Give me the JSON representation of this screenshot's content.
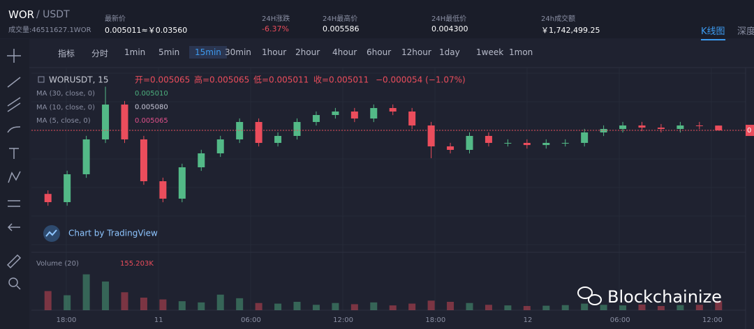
{
  "header": {
    "pair_base": "WOR",
    "pair_quote": "/ USDT",
    "volume": "成交量:46511627.1WOR",
    "stats": [
      {
        "label": "最新价",
        "value": "0.005011≈￥0.03560"
      },
      {
        "label": "24H涨跌",
        "value": "-6.37%"
      },
      {
        "label": "24H最高价",
        "value": "0.005586"
      },
      {
        "label": "24H最低价",
        "value": "0.004300"
      },
      {
        "label": "24h成交额",
        "value": "￥1,742,499.25"
      }
    ],
    "tabs": [
      "K线图",
      "深度"
    ]
  },
  "toolbar": {
    "indicator": "指标",
    "timeshare": "分时",
    "intervals": [
      "1min",
      "5min",
      "15min",
      "30min",
      "1hour",
      "2hour",
      "4hour",
      "6hour",
      "12hour",
      "1day",
      "1week",
      "1mon"
    ],
    "active": 2
  },
  "legend": {
    "symbol": "WORUSDT, 15",
    "open": "开=0.005065",
    "high": "高=0.005065",
    "low": "低=0.005011",
    "close": "收=0.005011",
    "change": "−0.000054 (−1.07%)",
    "ma": [
      {
        "name": "MA (30, close, 0)",
        "value": "0.005010",
        "color": "#4caf7d"
      },
      {
        "name": "MA (10, close, 0)",
        "value": "0.005080",
        "color": "#c8c8d8"
      },
      {
        "name": "MA (5, close, 0)",
        "value": "0.005065",
        "color": "#e0508a"
      }
    ],
    "volume_name": "Volume (20)",
    "volume_value": "155.203K"
  },
  "credit": "Chart by TradingView",
  "watermark": "Blockchainize",
  "price_tag": "0",
  "time_labels": [
    "18:00",
    "11",
    "06:00",
    "12:00",
    "18:00",
    "12",
    "06:00",
    "12:00"
  ],
  "chart": {
    "price_range": [
      0.00374,
      0.00569
    ],
    "volume_range": [
      0,
      700
    ],
    "up_color": "#53b987",
    "down_color": "#eb4d5c",
    "candles": [
      [
        0.0043,
        0.00434,
        0.004168,
        0.004208
      ],
      [
        0.004208,
        0.00456,
        0.004168,
        0.00452
      ],
      [
        0.00452,
        0.00495,
        0.00448,
        0.00491
      ],
      [
        0.00491,
        0.0055,
        0.00487,
        0.0053
      ],
      [
        0.0053,
        0.00534,
        0.00487,
        0.00491
      ],
      [
        0.00491,
        0.00495,
        0.004402,
        0.004442
      ],
      [
        0.004442,
        0.004482,
        0.004207,
        0.004247
      ],
      [
        0.004247,
        0.004638,
        0.004207,
        0.004598
      ],
      [
        0.004598,
        0.004794,
        0.004558,
        0.004754
      ],
      [
        0.004754,
        0.00495,
        0.004714,
        0.00491
      ],
      [
        0.00491,
        0.005145,
        0.00487,
        0.005105
      ],
      [
        0.005105,
        0.005145,
        0.004831,
        0.004871
      ],
      [
        0.004871,
        0.004989,
        0.004831,
        0.004949
      ],
      [
        0.004949,
        0.005145,
        0.004909,
        0.005105
      ],
      [
        0.005105,
        0.005223,
        0.005065,
        0.005183
      ],
      [
        0.005183,
        0.005262,
        0.005143,
        0.005222
      ],
      [
        0.005222,
        0.005262,
        0.005104,
        0.005144
      ],
      [
        0.005144,
        0.005301,
        0.005104,
        0.005261
      ],
      [
        0.005261,
        0.005301,
        0.005182,
        0.005222
      ],
      [
        0.005222,
        0.005262,
        0.005026,
        0.005066
      ],
      [
        0.005066,
        0.005106,
        0.0047,
        0.004832
      ],
      [
        0.004832,
        0.004872,
        0.004753,
        0.004793
      ],
      [
        0.004793,
        0.004989,
        0.004753,
        0.004949
      ],
      [
        0.004949,
        0.004989,
        0.004831,
        0.004871
      ],
      [
        0.004871,
        0.004911,
        0.004831,
        0.004871
      ],
      [
        0.004871,
        0.004911,
        0.004807,
        0.004847
      ],
      [
        0.004847,
        0.004911,
        0.004807,
        0.004871
      ],
      [
        0.004871,
        0.004911,
        0.004831,
        0.004871
      ],
      [
        0.004871,
        0.005028,
        0.004831,
        0.004988
      ],
      [
        0.004988,
        0.005067,
        0.004948,
        0.005027
      ],
      [
        0.005027,
        0.005106,
        0.004987,
        0.005066
      ],
      [
        0.005066,
        0.005106,
        0.005002,
        0.005042
      ],
      [
        0.005042,
        0.005082,
        0.004987,
        0.005027
      ],
      [
        0.005027,
        0.005106,
        0.004987,
        0.005066
      ],
      [
        0.005066,
        0.005106,
        0.005025,
        0.005065
      ],
      [
        0.005065,
        0.005065,
        0.005011,
        0.005011
      ]
    ],
    "volumes": [
      320,
      250,
      600,
      480,
      300,
      210,
      180,
      150,
      130,
      260,
      200,
      120,
      110,
      140,
      90,
      120,
      100,
      130,
      80,
      110,
      160,
      140,
      120,
      90,
      80,
      70,
      75,
      85,
      110,
      90,
      80,
      95,
      70,
      85,
      90,
      155.203
    ]
  }
}
